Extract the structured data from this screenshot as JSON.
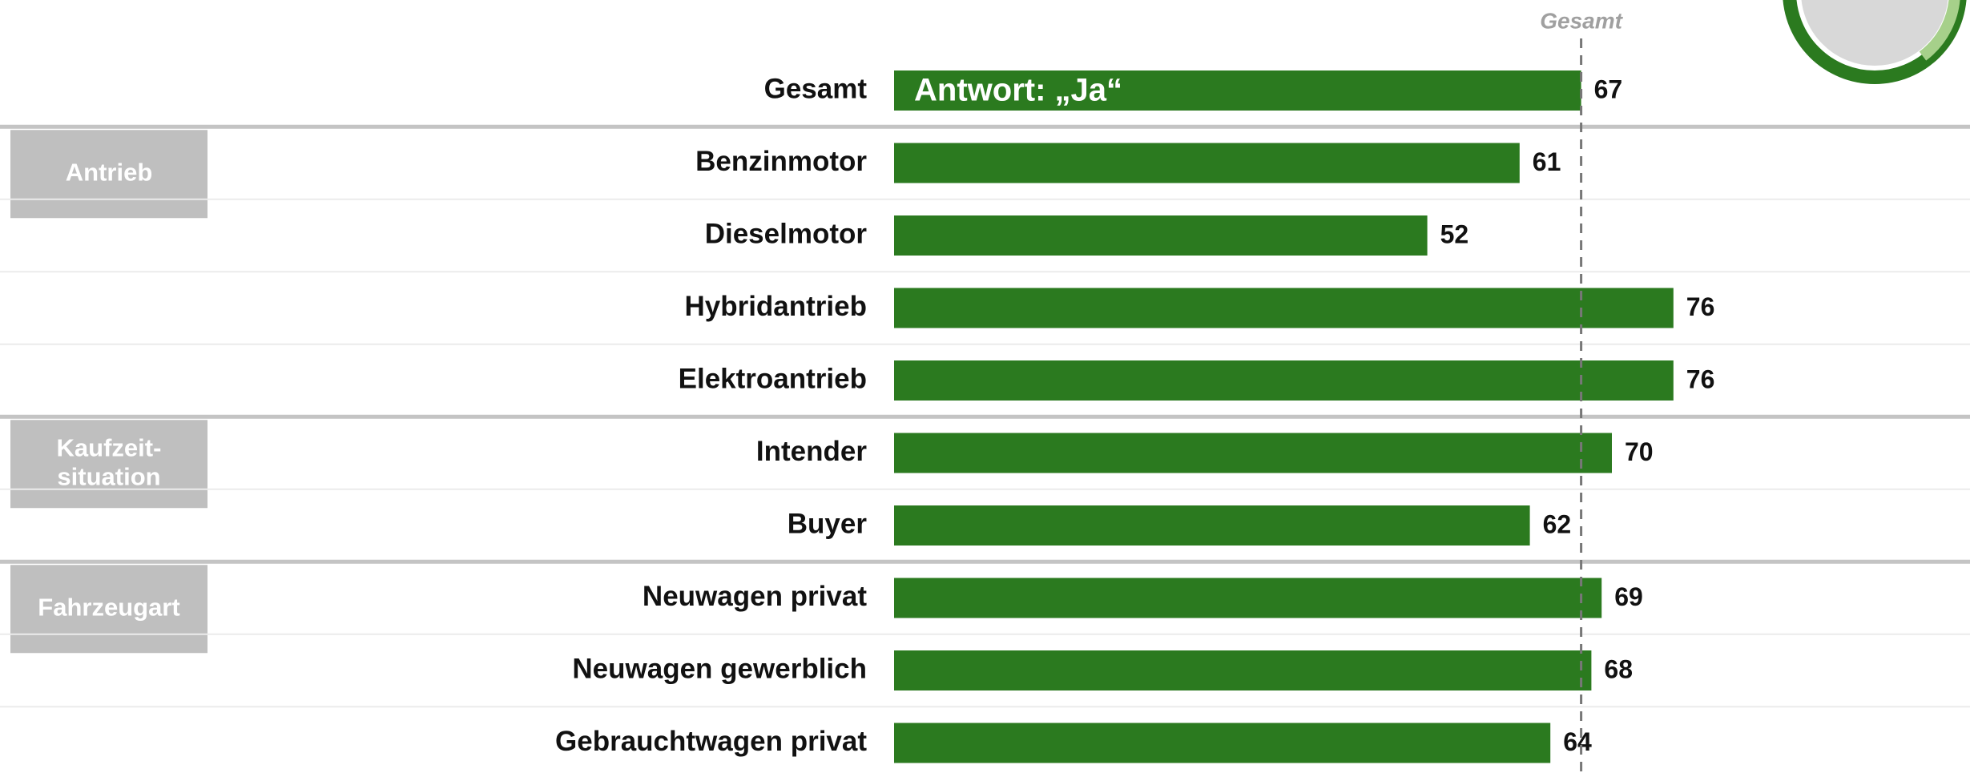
{
  "chart_data": {
    "type": "bar",
    "bar_annotation": "Antwort: „Ja“",
    "reference_label": "Gesamt",
    "color": "#2b7a1f",
    "total": {
      "category": "Gesamt",
      "value": 67
    },
    "groups": [
      {
        "label": [
          "Antrieb"
        ],
        "categories": [
          "Benzinmotor",
          "Dieselmotor",
          "Hybridantrieb",
          "Elektroantrieb"
        ],
        "values": [
          61,
          52,
          76,
          76
        ]
      },
      {
        "label": [
          "Kaufzeit-",
          "situation"
        ],
        "categories": [
          "Intender",
          "Buyer"
        ],
        "values": [
          70,
          62
        ]
      },
      {
        "label": [
          "Fahrzeugart"
        ],
        "categories": [
          "Neuwagen privat",
          "Neuwagen gewerblich",
          "Gebrauchtwagen privat"
        ],
        "values": [
          69,
          68,
          64
        ]
      }
    ]
  }
}
